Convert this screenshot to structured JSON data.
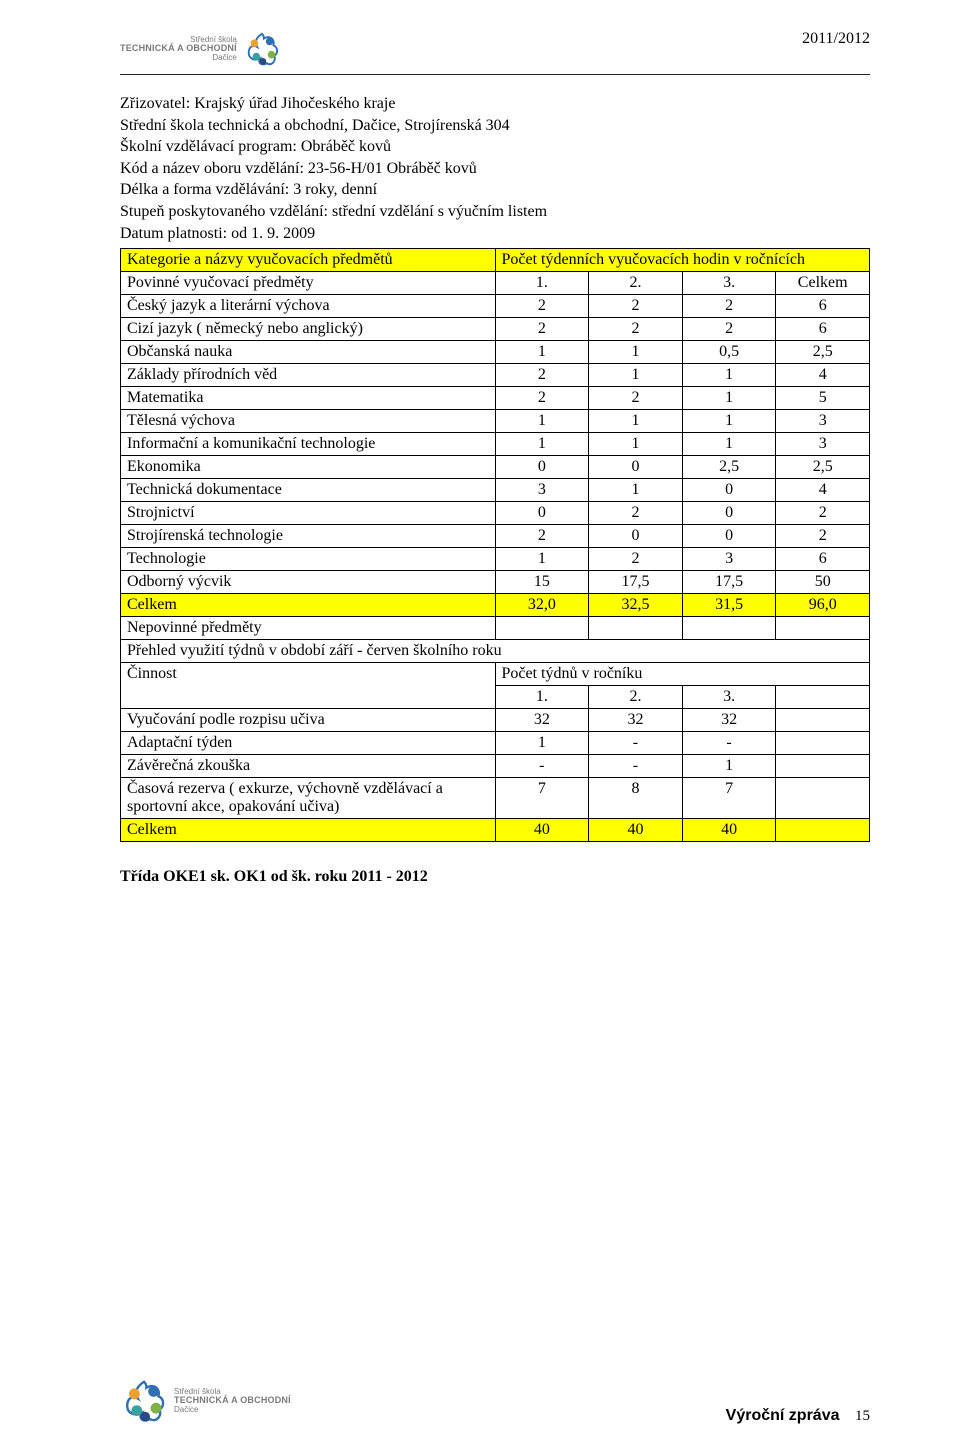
{
  "header": {
    "logo": {
      "line1": "Střední škola",
      "line2": "TECHNICKÁ A OBCHODNÍ",
      "line3": "Dačice"
    },
    "year": "2011/2012"
  },
  "intro": {
    "l1": "Zřizovatel: Krajský úřad Jihočeského kraje",
    "l2": "Střední škola technická a obchodní, Dačice, Strojírenská 304",
    "l3": "Školní vzdělávací program: Obráběč kovů",
    "l4": "Kód a název oboru vzdělání: 23-56-H/01 Obráběč kovů",
    "l5": "Délka a forma vzdělávání: 3 roky, denní",
    "l6": "Stupeň poskytovaného vzdělání: střední vzdělání s výučním listem",
    "l7": "Datum platnosti: od 1. 9. 2009"
  },
  "table": {
    "hdr1_col1": "Kategorie a názvy vyučovacích předmětů",
    "hdr1_col2": "Počet týdenních vyučovacích hodin v ročnících",
    "hdr2": {
      "label": "Povinné vyučovací předměty",
      "c1": "1.",
      "c2": "2.",
      "c3": "3.",
      "c4": "Celkem"
    },
    "rows": [
      {
        "label": "Český jazyk a literární výchova",
        "v": [
          "2",
          "2",
          "2",
          "6"
        ],
        "yellow": false
      },
      {
        "label": "Cizí jazyk ( německý nebo anglický)",
        "v": [
          "2",
          "2",
          "2",
          "6"
        ],
        "yellow": false
      },
      {
        "label": "Občanská nauka",
        "v": [
          "1",
          "1",
          "0,5",
          "2,5"
        ],
        "yellow": false
      },
      {
        "label": "Základy přírodních věd",
        "v": [
          "2",
          "1",
          "1",
          "4"
        ],
        "yellow": false
      },
      {
        "label": "Matematika",
        "v": [
          "2",
          "2",
          "1",
          "5"
        ],
        "yellow": false
      },
      {
        "label": "Tělesná výchova",
        "v": [
          "1",
          "1",
          "1",
          "3"
        ],
        "yellow": false
      },
      {
        "label": "Informační a komunikační technologie",
        "v": [
          "1",
          "1",
          "1",
          "3"
        ],
        "yellow": false
      },
      {
        "label": "Ekonomika",
        "v": [
          "0",
          "0",
          "2,5",
          "2,5"
        ],
        "yellow": false
      },
      {
        "label": "Technická dokumentace",
        "v": [
          "3",
          "1",
          "0",
          "4"
        ],
        "yellow": false
      },
      {
        "label": "Strojnictví",
        "v": [
          "0",
          "2",
          "0",
          "2"
        ],
        "yellow": false
      },
      {
        "label": "Strojírenská technologie",
        "v": [
          "2",
          "0",
          "0",
          "2"
        ],
        "yellow": false
      },
      {
        "label": "Technologie",
        "v": [
          "1",
          "2",
          "3",
          "6"
        ],
        "yellow": false
      },
      {
        "label": "Odborný výcvik",
        "v": [
          "15",
          "17,5",
          "17,5",
          "50"
        ],
        "yellow": false
      },
      {
        "label": "Celkem",
        "v": [
          "32,0",
          "32,5",
          "31,5",
          "96,0"
        ],
        "yellow": true
      }
    ],
    "nepovinne": "Nepovinné předměty",
    "prehled": "Přehled využití týdnů v období září - červen školního roku",
    "cinnost": "Činnost",
    "cinnost_col": "Počet týdnů v ročníku",
    "grade_hdr": [
      "1.",
      "2.",
      "3."
    ],
    "rows2": [
      {
        "label": "Vyučování podle rozpisu učiva",
        "v": [
          "32",
          "32",
          "32"
        ],
        "yellow": false
      },
      {
        "label": "Adaptační týden",
        "v": [
          "1",
          "-",
          "-"
        ],
        "yellow": false
      },
      {
        "label": "Závěrečná zkouška",
        "v": [
          "-",
          "-",
          "1"
        ],
        "yellow": false
      },
      {
        "label": "Časová rezerva ( exkurze, výchovně vzdělávací a sportovní akce, opakování učiva)",
        "v": [
          "7",
          "8",
          "7"
        ],
        "yellow": false
      },
      {
        "label": "Celkem",
        "v": [
          "40",
          "40",
          "40"
        ],
        "yellow": true
      }
    ]
  },
  "footer_note": "Třída OKE1 sk. OK1 od šk. roku 2011 - 2012",
  "footer": {
    "title": "Výroční zpráva",
    "page": "15"
  },
  "colors": {
    "highlight": "#ffff00",
    "border": "#000000",
    "text": "#000000",
    "logo_blue": "#2f6fb0",
    "logo_orange": "#f0a030",
    "logo_green": "#7fb04a",
    "logo_teal": "#3aa0a0",
    "logo_navy": "#2a4a80"
  }
}
